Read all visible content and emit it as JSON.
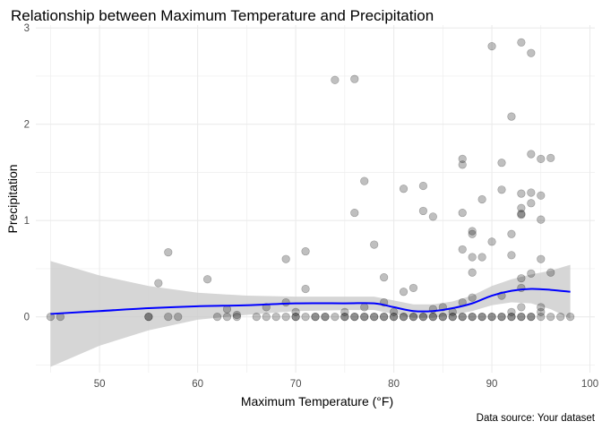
{
  "chart_data": {
    "type": "scatter",
    "title": "Relationship between Maximum Temperature and Precipitation",
    "xlabel": "Maximum Temperature (°F)",
    "ylabel": "Precipitation",
    "caption": "Data source: Your dataset",
    "xlim": [
      43.5,
      100.5
    ],
    "ylim": [
      -0.58,
      3.03
    ],
    "x_ticks": [
      50,
      60,
      70,
      80,
      90,
      100
    ],
    "y_ticks": [
      0,
      1,
      2,
      3
    ],
    "grid": true,
    "legend": "none",
    "colors": {
      "points": "#000000",
      "trend_line": "#0000ff",
      "confidence_band": "#cccccc",
      "grid": "#ebebeb"
    },
    "points": [
      {
        "x": 45,
        "y": 0
      },
      {
        "x": 46,
        "y": 0
      },
      {
        "x": 55,
        "y": 0
      },
      {
        "x": 55,
        "y": 0
      },
      {
        "x": 56,
        "y": 0.35
      },
      {
        "x": 57,
        "y": 0.67
      },
      {
        "x": 57,
        "y": 0
      },
      {
        "x": 58,
        "y": 0
      },
      {
        "x": 61,
        "y": 0.39
      },
      {
        "x": 62,
        "y": 0
      },
      {
        "x": 63,
        "y": 0
      },
      {
        "x": 63,
        "y": 0.08
      },
      {
        "x": 64,
        "y": 0
      },
      {
        "x": 64,
        "y": 0.02
      },
      {
        "x": 66,
        "y": 0
      },
      {
        "x": 67,
        "y": 0
      },
      {
        "x": 67,
        "y": 0.1
      },
      {
        "x": 68,
        "y": 0
      },
      {
        "x": 69,
        "y": 0
      },
      {
        "x": 69,
        "y": 0.6
      },
      {
        "x": 69,
        "y": 0.15
      },
      {
        "x": 70,
        "y": 0
      },
      {
        "x": 70,
        "y": 0
      },
      {
        "x": 70,
        "y": 0.05
      },
      {
        "x": 71,
        "y": 0
      },
      {
        "x": 71,
        "y": 0.29
      },
      {
        "x": 71,
        "y": 0.68
      },
      {
        "x": 72,
        "y": 0
      },
      {
        "x": 72,
        "y": 0
      },
      {
        "x": 73,
        "y": 0
      },
      {
        "x": 73,
        "y": 0
      },
      {
        "x": 74,
        "y": 0
      },
      {
        "x": 74,
        "y": 2.46
      },
      {
        "x": 75,
        "y": 0
      },
      {
        "x": 75,
        "y": 0
      },
      {
        "x": 75,
        "y": 0.05
      },
      {
        "x": 76,
        "y": 0
      },
      {
        "x": 76,
        "y": 0
      },
      {
        "x": 76,
        "y": 1.08
      },
      {
        "x": 76,
        "y": 2.47
      },
      {
        "x": 77,
        "y": 0
      },
      {
        "x": 77,
        "y": 0
      },
      {
        "x": 77,
        "y": 1.41
      },
      {
        "x": 77,
        "y": 0.1
      },
      {
        "x": 78,
        "y": 0
      },
      {
        "x": 78,
        "y": 0
      },
      {
        "x": 78,
        "y": 0.75
      },
      {
        "x": 79,
        "y": 0
      },
      {
        "x": 79,
        "y": 0
      },
      {
        "x": 79,
        "y": 0.41
      },
      {
        "x": 79,
        "y": 0.15
      },
      {
        "x": 80,
        "y": 0
      },
      {
        "x": 80,
        "y": 0
      },
      {
        "x": 80,
        "y": 0.05
      },
      {
        "x": 81,
        "y": 0
      },
      {
        "x": 81,
        "y": 0
      },
      {
        "x": 81,
        "y": 0.26
      },
      {
        "x": 81,
        "y": 1.33
      },
      {
        "x": 82,
        "y": 0
      },
      {
        "x": 82,
        "y": 0
      },
      {
        "x": 82,
        "y": 0.3
      },
      {
        "x": 83,
        "y": 0
      },
      {
        "x": 83,
        "y": 0
      },
      {
        "x": 83,
        "y": 1.1
      },
      {
        "x": 83,
        "y": 1.36
      },
      {
        "x": 84,
        "y": 0
      },
      {
        "x": 84,
        "y": 0
      },
      {
        "x": 84,
        "y": 1.04
      },
      {
        "x": 84,
        "y": 0.08
      },
      {
        "x": 85,
        "y": 0
      },
      {
        "x": 85,
        "y": 0
      },
      {
        "x": 85,
        "y": 0.1
      },
      {
        "x": 86,
        "y": 0
      },
      {
        "x": 86,
        "y": 0
      },
      {
        "x": 86,
        "y": 0.05
      },
      {
        "x": 87,
        "y": 0
      },
      {
        "x": 87,
        "y": 0
      },
      {
        "x": 87,
        "y": 0.15
      },
      {
        "x": 87,
        "y": 0.7
      },
      {
        "x": 87,
        "y": 1.08
      },
      {
        "x": 87,
        "y": 1.58
      },
      {
        "x": 87,
        "y": 1.64
      },
      {
        "x": 88,
        "y": 0
      },
      {
        "x": 88,
        "y": 0
      },
      {
        "x": 88,
        "y": 0.2
      },
      {
        "x": 88,
        "y": 0.46
      },
      {
        "x": 88,
        "y": 0.62
      },
      {
        "x": 88,
        "y": 0.86
      },
      {
        "x": 88,
        "y": 0.89
      },
      {
        "x": 89,
        "y": 0
      },
      {
        "x": 89,
        "y": 0
      },
      {
        "x": 89,
        "y": 0.62
      },
      {
        "x": 89,
        "y": 1.22
      },
      {
        "x": 90,
        "y": 0
      },
      {
        "x": 90,
        "y": 0
      },
      {
        "x": 90,
        "y": 0.78
      },
      {
        "x": 90,
        "y": 2.81
      },
      {
        "x": 91,
        "y": 0
      },
      {
        "x": 91,
        "y": 0
      },
      {
        "x": 91,
        "y": 0.22
      },
      {
        "x": 91,
        "y": 1.32
      },
      {
        "x": 91,
        "y": 1.6
      },
      {
        "x": 92,
        "y": 0
      },
      {
        "x": 92,
        "y": 0
      },
      {
        "x": 92,
        "y": 0.05
      },
      {
        "x": 92,
        "y": 0.64
      },
      {
        "x": 92,
        "y": 0.86
      },
      {
        "x": 92,
        "y": 2.08
      },
      {
        "x": 93,
        "y": 0
      },
      {
        "x": 93,
        "y": 0
      },
      {
        "x": 93,
        "y": 0.1
      },
      {
        "x": 93,
        "y": 0.3
      },
      {
        "x": 93,
        "y": 0.4
      },
      {
        "x": 93,
        "y": 1.06
      },
      {
        "x": 93,
        "y": 1.07
      },
      {
        "x": 93,
        "y": 1.13
      },
      {
        "x": 93,
        "y": 1.28
      },
      {
        "x": 93,
        "y": 2.85
      },
      {
        "x": 94,
        "y": 0
      },
      {
        "x": 94,
        "y": 0
      },
      {
        "x": 94,
        "y": 0.45
      },
      {
        "x": 94,
        "y": 1.18
      },
      {
        "x": 94,
        "y": 1.29
      },
      {
        "x": 94,
        "y": 1.69
      },
      {
        "x": 94,
        "y": 2.74
      },
      {
        "x": 95,
        "y": 0
      },
      {
        "x": 95,
        "y": 0.05
      },
      {
        "x": 95,
        "y": 0.1
      },
      {
        "x": 95,
        "y": 0.6
      },
      {
        "x": 95,
        "y": 1.01
      },
      {
        "x": 95,
        "y": 1.26
      },
      {
        "x": 95,
        "y": 1.64
      },
      {
        "x": 96,
        "y": 0
      },
      {
        "x": 96,
        "y": 0.46
      },
      {
        "x": 96,
        "y": 1.65
      },
      {
        "x": 97,
        "y": 0
      },
      {
        "x": 98,
        "y": 0
      }
    ],
    "trend": [
      {
        "x": 45,
        "y": 0.03
      },
      {
        "x": 50,
        "y": 0.06
      },
      {
        "x": 55,
        "y": 0.09
      },
      {
        "x": 60,
        "y": 0.11
      },
      {
        "x": 65,
        "y": 0.12
      },
      {
        "x": 70,
        "y": 0.14
      },
      {
        "x": 75,
        "y": 0.14
      },
      {
        "x": 78,
        "y": 0.14
      },
      {
        "x": 80,
        "y": 0.1
      },
      {
        "x": 82,
        "y": 0.06
      },
      {
        "x": 84,
        "y": 0.06
      },
      {
        "x": 86,
        "y": 0.09
      },
      {
        "x": 88,
        "y": 0.14
      },
      {
        "x": 90,
        "y": 0.22
      },
      {
        "x": 92,
        "y": 0.27
      },
      {
        "x": 94,
        "y": 0.29
      },
      {
        "x": 96,
        "y": 0.28
      },
      {
        "x": 98,
        "y": 0.26
      }
    ],
    "band": [
      {
        "x": 45,
        "lo": -0.52,
        "hi": 0.58
      },
      {
        "x": 50,
        "lo": -0.3,
        "hi": 0.43
      },
      {
        "x": 55,
        "lo": -0.14,
        "hi": 0.32
      },
      {
        "x": 60,
        "lo": -0.03,
        "hi": 0.25
      },
      {
        "x": 65,
        "lo": 0.02,
        "hi": 0.22
      },
      {
        "x": 70,
        "lo": 0.06,
        "hi": 0.21
      },
      {
        "x": 75,
        "lo": 0.07,
        "hi": 0.21
      },
      {
        "x": 78,
        "lo": 0.07,
        "hi": 0.21
      },
      {
        "x": 80,
        "lo": 0.03,
        "hi": 0.17
      },
      {
        "x": 82,
        "lo": -0.01,
        "hi": 0.13
      },
      {
        "x": 84,
        "lo": -0.01,
        "hi": 0.13
      },
      {
        "x": 86,
        "lo": 0.02,
        "hi": 0.16
      },
      {
        "x": 88,
        "lo": 0.06,
        "hi": 0.22
      },
      {
        "x": 90,
        "lo": 0.12,
        "hi": 0.32
      },
      {
        "x": 92,
        "lo": 0.15,
        "hi": 0.39
      },
      {
        "x": 94,
        "lo": 0.14,
        "hi": 0.44
      },
      {
        "x": 96,
        "lo": 0.08,
        "hi": 0.48
      },
      {
        "x": 98,
        "lo": -0.02,
        "hi": 0.54
      }
    ]
  }
}
